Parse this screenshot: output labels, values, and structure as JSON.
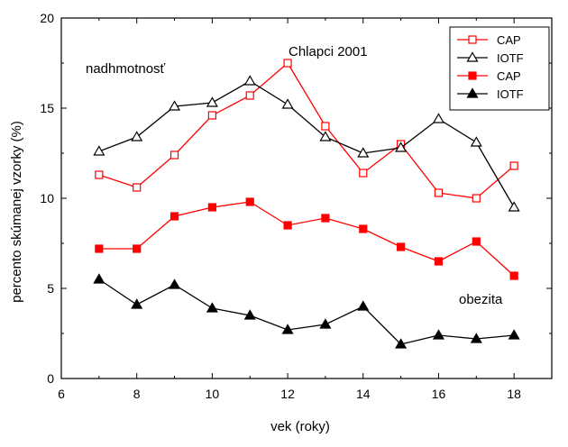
{
  "chart_data": {
    "type": "line",
    "title": "Chlapci 2001",
    "xlabel": "vek (roky)",
    "ylabel": "percento skúmanej vzorky (%)",
    "xlim": [
      6,
      19
    ],
    "ylim": [
      0,
      20
    ],
    "xticks": [
      6,
      8,
      10,
      12,
      14,
      16,
      18
    ],
    "yticks": [
      0,
      5,
      10,
      15,
      20
    ],
    "grid": false,
    "legend_position": "top-right",
    "annotations": [
      "nadhmotnosť",
      "obezita"
    ],
    "x": [
      7,
      8,
      9,
      10,
      11,
      12,
      13,
      14,
      15,
      16,
      17,
      18
    ],
    "series": [
      {
        "name": "CAP",
        "group": "nadhmotnosť",
        "color": "#ff0000",
        "marker": "square-open",
        "values": [
          11.3,
          10.6,
          12.4,
          14.6,
          15.7,
          17.5,
          14.0,
          11.4,
          13.0,
          10.3,
          10.0,
          11.8
        ]
      },
      {
        "name": "IOTF",
        "group": "nadhmotnosť",
        "color": "#000000",
        "marker": "triangle-open",
        "values": [
          12.6,
          13.4,
          15.1,
          15.3,
          16.5,
          15.2,
          13.4,
          12.5,
          12.8,
          14.4,
          13.1,
          9.5
        ]
      },
      {
        "name": "CAP",
        "group": "obezita",
        "color": "#ff0000",
        "marker": "square-filled",
        "values": [
          7.2,
          7.2,
          9.0,
          9.5,
          9.8,
          8.5,
          8.9,
          8.3,
          7.3,
          6.5,
          7.6,
          5.7
        ]
      },
      {
        "name": "IOTF",
        "group": "obezita",
        "color": "#000000",
        "marker": "triangle-filled",
        "values": [
          5.5,
          4.1,
          5.2,
          3.9,
          3.5,
          2.7,
          3.0,
          4.0,
          1.9,
          2.4,
          2.2,
          2.4
        ]
      }
    ]
  }
}
